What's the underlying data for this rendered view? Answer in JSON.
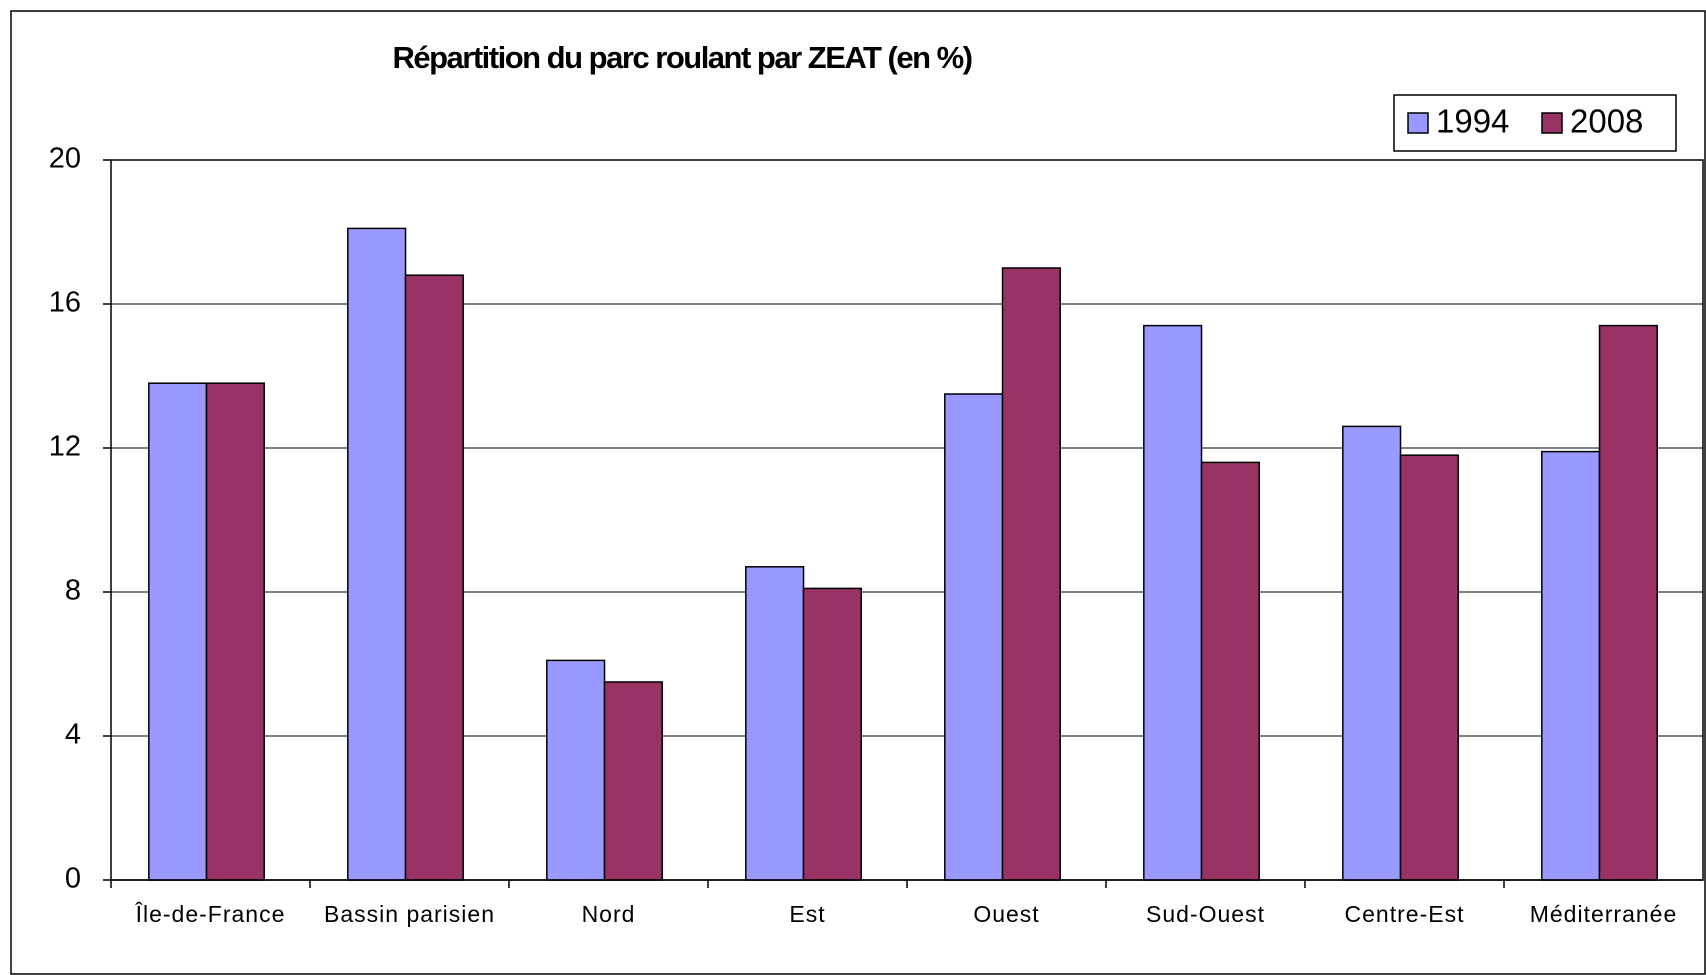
{
  "chart_data": {
    "type": "bar",
    "title": "Répartition du parc roulant par ZEAT (en %)",
    "categories": [
      "Île-de-France",
      "Bassin parisien",
      "Nord",
      "Est",
      "Ouest",
      "Sud-Ouest",
      "Centre-Est",
      "Méditerranée"
    ],
    "series": [
      {
        "name": "1994",
        "color": "#9999ff",
        "values": [
          13.8,
          18.1,
          6.1,
          8.7,
          13.5,
          15.4,
          12.6,
          11.9
        ]
      },
      {
        "name": "2008",
        "color": "#993366",
        "values": [
          13.8,
          16.8,
          5.5,
          8.1,
          17.0,
          11.6,
          11.8,
          15.4
        ]
      }
    ],
    "ylim": [
      0,
      20
    ],
    "yticks": [
      0,
      4,
      8,
      12,
      16,
      20
    ],
    "grid": true,
    "legend": "top-right"
  }
}
